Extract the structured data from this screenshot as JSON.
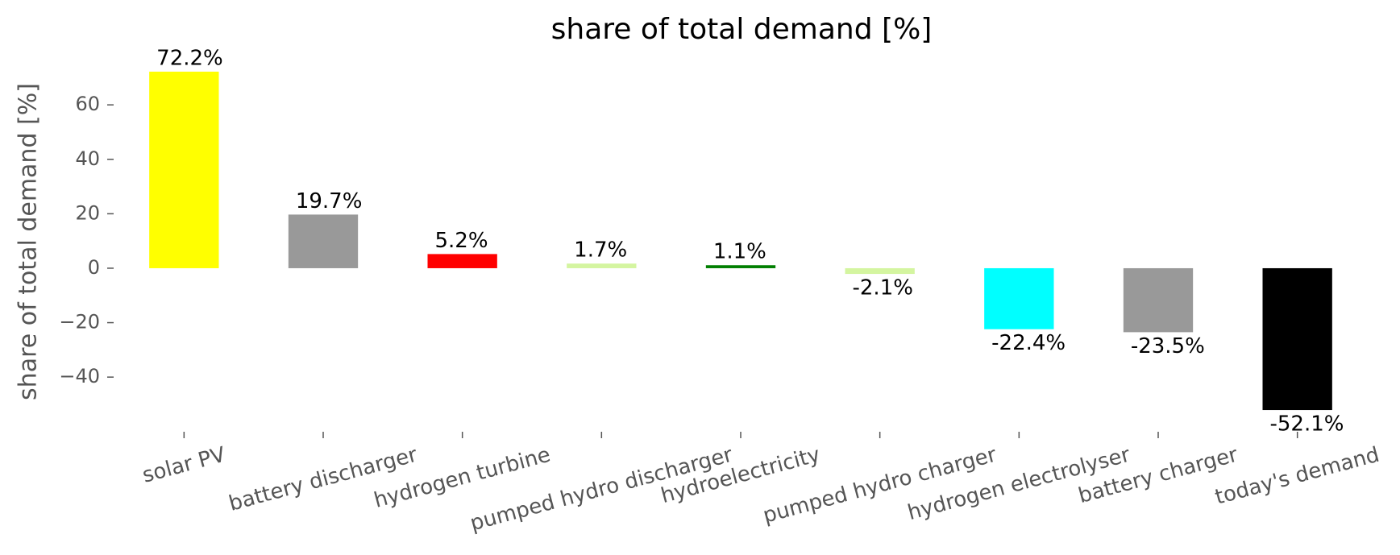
{
  "chart_data": {
    "type": "bar",
    "title": "share of total demand [%]",
    "ylabel": "share of total demand [%]",
    "categories": [
      "solar PV",
      "battery discharger",
      "hydrogen turbine",
      "pumped hydro discharger",
      "hydroelectricity",
      "pumped hydro charger",
      "hydrogen electrolyser",
      "battery charger",
      "today's demand"
    ],
    "values": [
      72.2,
      19.7,
      5.2,
      1.7,
      1.1,
      -2.1,
      -22.4,
      -23.5,
      -52.1
    ],
    "value_labels": [
      "72.2%",
      "19.7%",
      "5.2%",
      "1.7%",
      "1.1%",
      "-2.1%",
      "-22.4%",
      "-23.5%",
      "-52.1%"
    ],
    "colors": [
      "#ffff00",
      "#999999",
      "#ff0000",
      "#d4f5a0",
      "#007f00",
      "#d4f5a0",
      "#00ffff",
      "#999999",
      "#000000"
    ],
    "ylim": [
      -58.3,
      78.4
    ],
    "yticks": [
      {
        "value": -40,
        "label": "−40"
      },
      {
        "value": -20,
        "label": "−20"
      },
      0,
      20,
      40,
      60
    ],
    "grid": false
  }
}
